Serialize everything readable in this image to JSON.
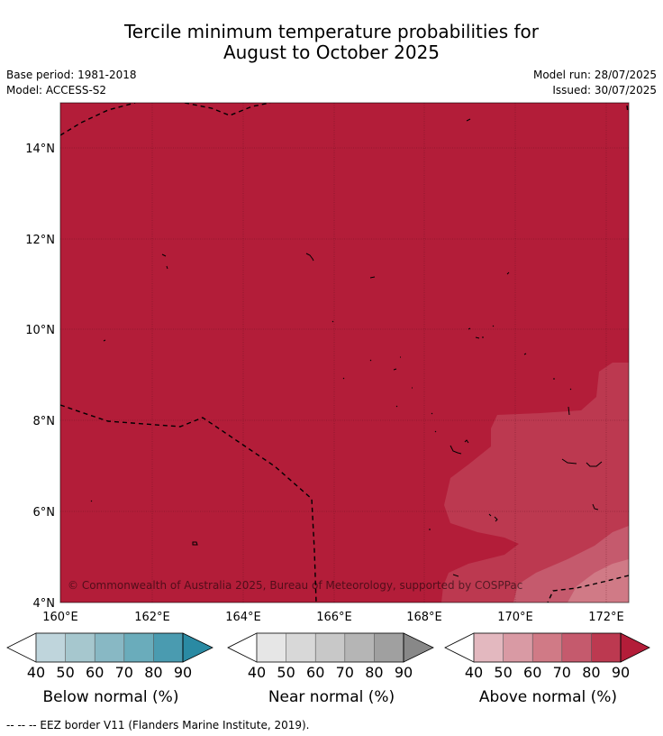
{
  "title": {
    "line1": "Tercile minimum temperature probabilities for",
    "line2": "August to October 2025"
  },
  "info": {
    "base_period": "Base period: 1981-2018",
    "model": "Model: ACCESS-S2",
    "model_run": "Model run: 28/07/2025",
    "issued": "Issued: 30/07/2025"
  },
  "map": {
    "background_color": "#b31d39",
    "x_ticks": [
      "160°E",
      "162°E",
      "164°E",
      "166°E",
      "168°E",
      "170°E",
      "172°E"
    ],
    "y_ticks": [
      "14°N",
      "12°N",
      "10°N",
      "8°N",
      "6°N",
      "4°N"
    ],
    "copyright": "© Commonwealth of Australia 2025, Bureau of Meteorology, supported by COSPPac",
    "probability_zones": [
      {
        "category": "above",
        "range": "90+",
        "color": "#b31d39"
      },
      {
        "category": "above",
        "range": "80-90",
        "color": "#bc3950"
      },
      {
        "category": "above",
        "range": "70-80",
        "color": "#c55a6d"
      },
      {
        "category": "above",
        "range": "60-70",
        "color": "#d07a86"
      }
    ]
  },
  "colorbars": [
    {
      "label": "Below normal (%)",
      "ticks": [
        "40",
        "50",
        "60",
        "70",
        "80",
        "90"
      ],
      "colors": [
        "#ffffff",
        "#bfd5dc",
        "#a6c7ce",
        "#88b8c4",
        "#6aacbb",
        "#4a9bb0",
        "#2a8aa3"
      ]
    },
    {
      "label": "Near normal (%)",
      "ticks": [
        "40",
        "50",
        "60",
        "70",
        "80",
        "90"
      ],
      "colors": [
        "#ffffff",
        "#e6e6e6",
        "#d8d8d8",
        "#c8c8c8",
        "#b5b5b5",
        "#a0a0a0",
        "#888888"
      ]
    },
    {
      "label": "Above normal (%)",
      "ticks": [
        "40",
        "50",
        "60",
        "70",
        "80",
        "90"
      ],
      "colors": [
        "#ffffff",
        "#e3b8bf",
        "#d99aa4",
        "#d07a86",
        "#c55a6d",
        "#bc3950",
        "#b31d39"
      ]
    }
  ],
  "footnote": "--  --  -- EEZ border V11 (Flanders Marine Institute, 2019)."
}
